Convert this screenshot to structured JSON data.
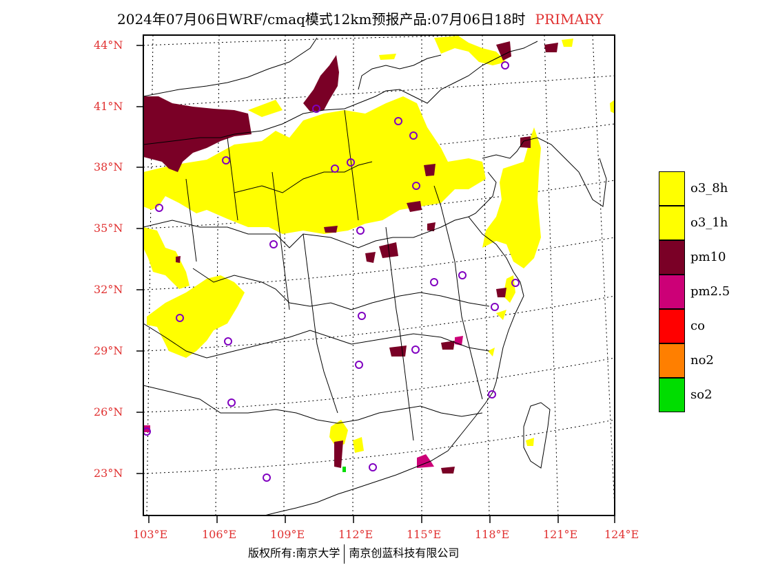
{
  "title": {
    "main": "2024年07月06日WRF/cmaq模式12km预报产品:07月06日18时",
    "tag": "PRIMARY"
  },
  "axes": {
    "lat_labels": [
      "44°N",
      "41°N",
      "38°N",
      "35°N",
      "32°N",
      "29°N",
      "26°N",
      "23°N"
    ],
    "lon_labels": [
      "103°E",
      "106°E",
      "109°E",
      "112°E",
      "115°E",
      "118°E",
      "121°E",
      "124°E"
    ]
  },
  "legend": [
    {
      "label": "o3_8h",
      "color": "#ffff00"
    },
    {
      "label": "o3_1h",
      "color": "#ffff00"
    },
    {
      "label": "pm10",
      "color": "#7a0026"
    },
    {
      "label": "pm2.5",
      "color": "#cc0077"
    },
    {
      "label": "co",
      "color": "#ff0000"
    },
    {
      "label": "no2",
      "color": "#ff7f00"
    },
    {
      "label": "so2",
      "color": "#00dd00"
    }
  ],
  "credit": {
    "left": "版权所有:南京大学",
    "right": "南京创蓝科技有限公司"
  },
  "colors": {
    "label_red": "#e03030",
    "o3": "#ffff00",
    "pm10": "#7a0026",
    "pm25": "#cc0077",
    "station": "#8000c0"
  }
}
